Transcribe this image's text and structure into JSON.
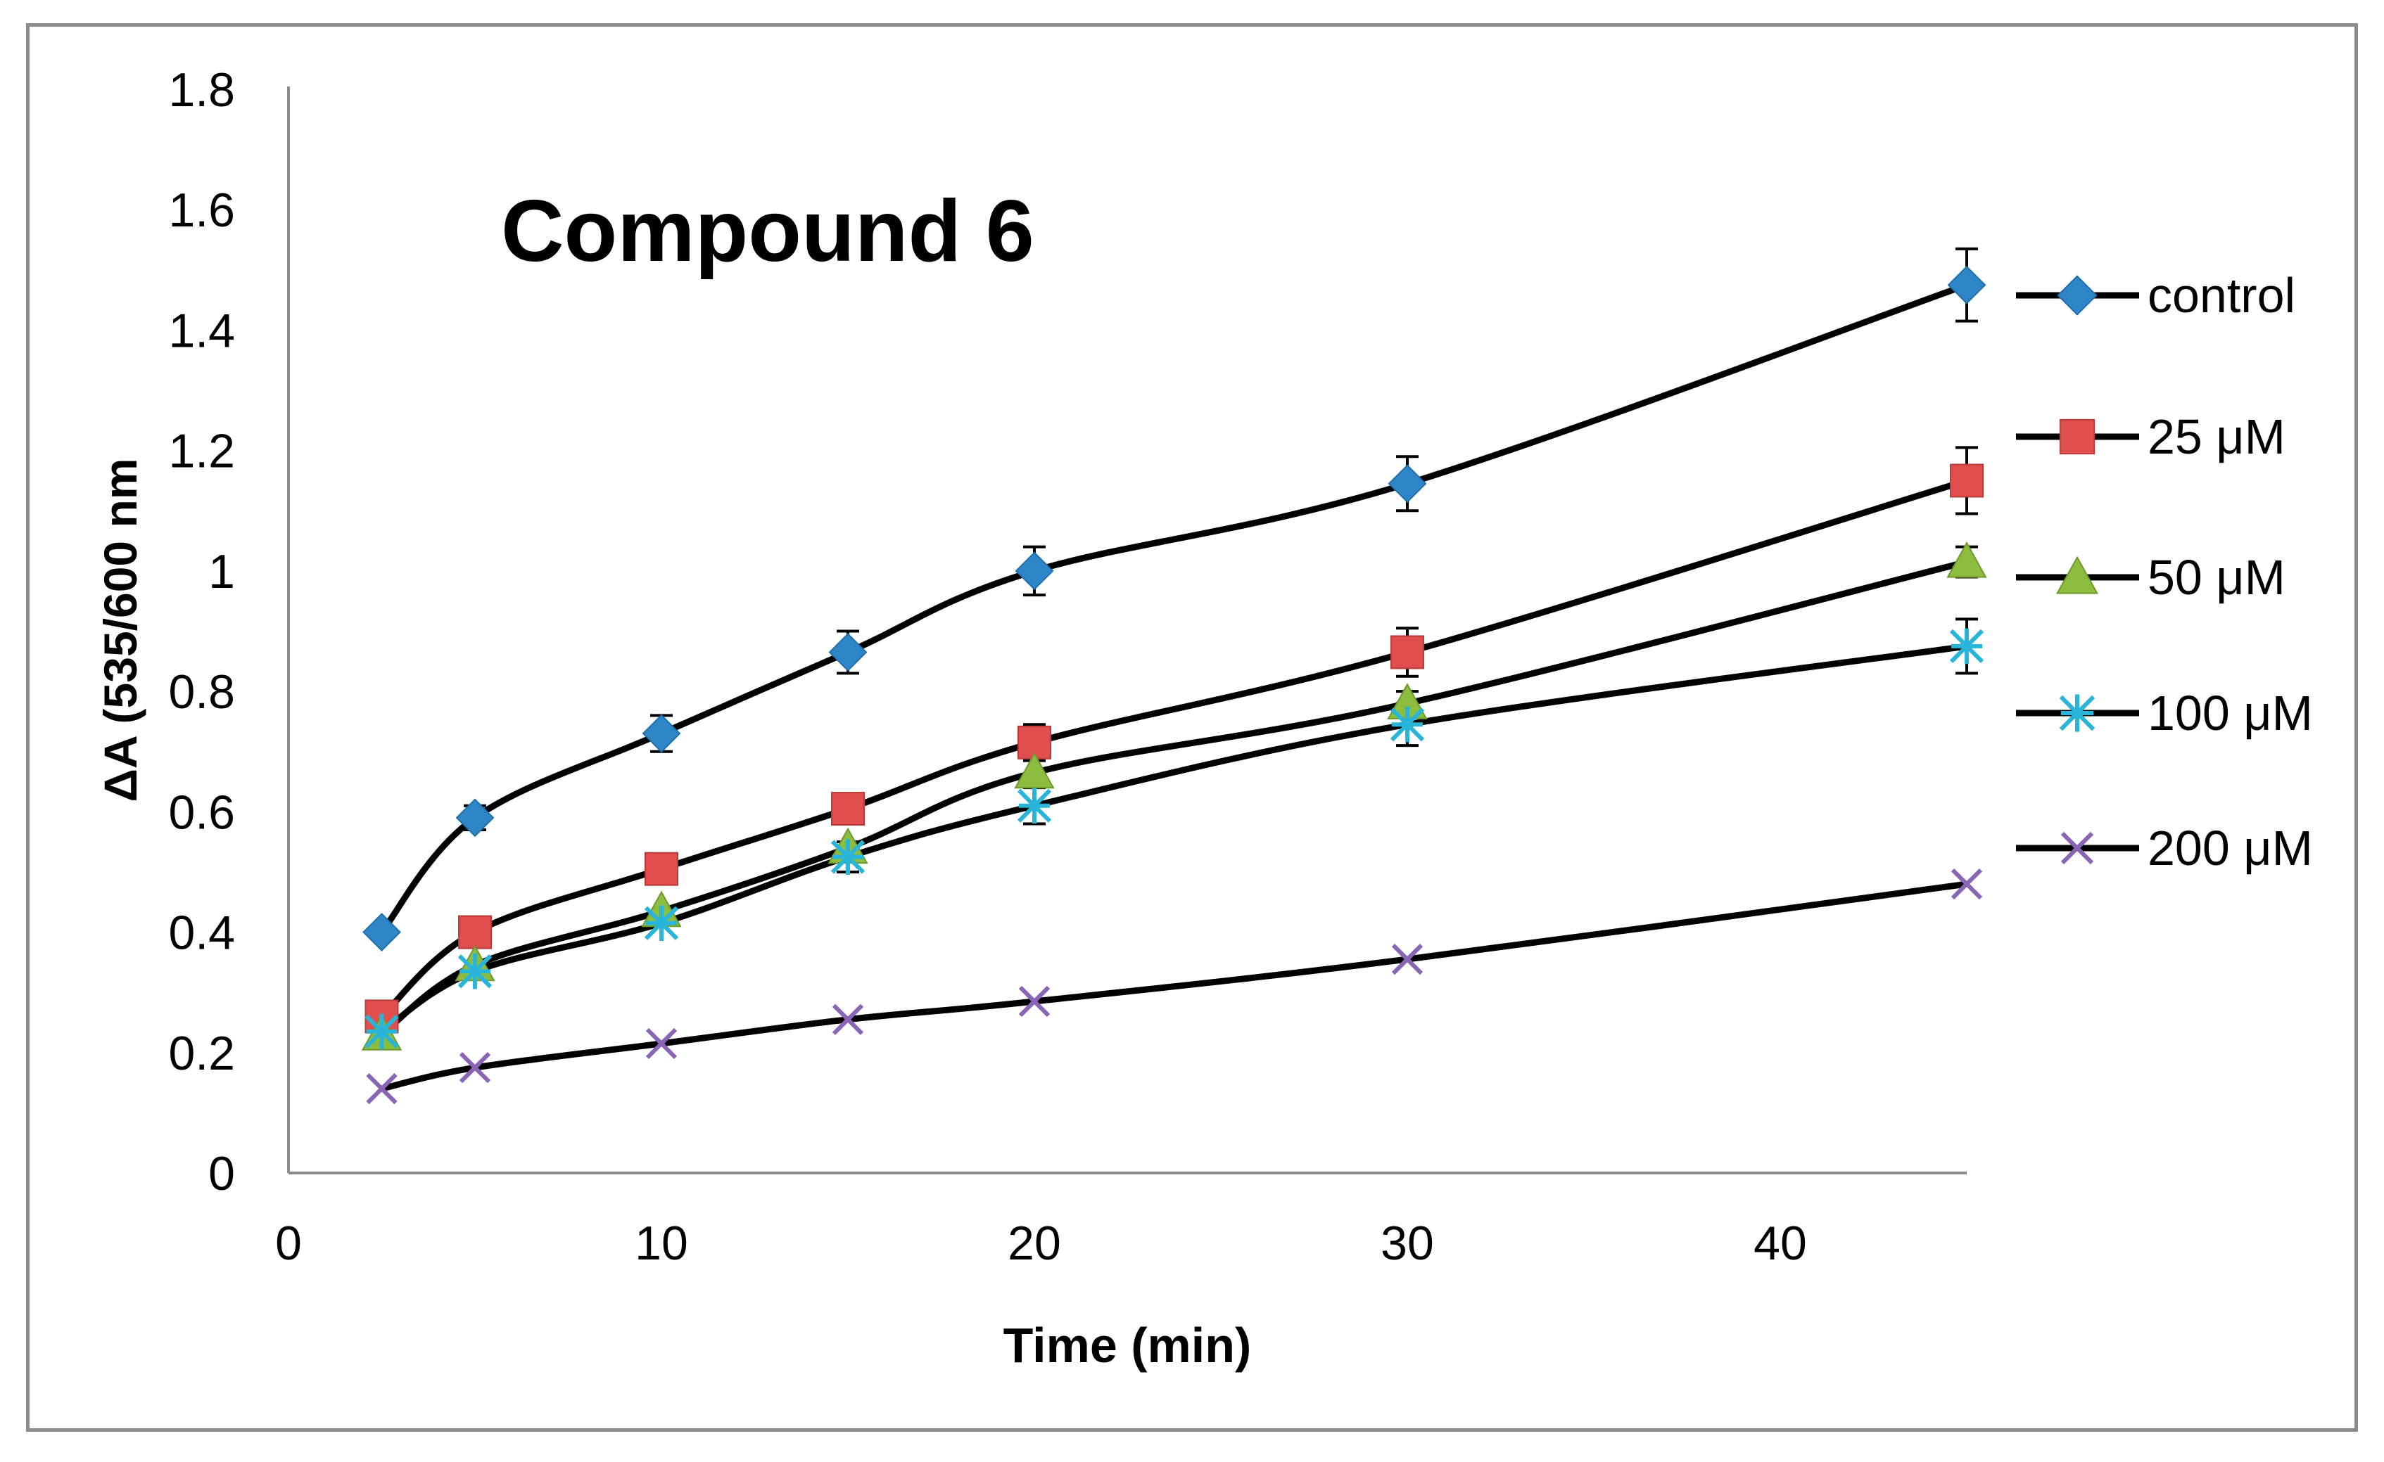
{
  "chart_data": {
    "type": "line",
    "title": "Compound 6",
    "xlabel": "Time (min)",
    "ylabel": "ΔA (535/600 nm",
    "xlim": [
      0,
      45
    ],
    "ylim": [
      0,
      1.8
    ],
    "x_ticks": [
      0,
      10,
      20,
      30,
      40
    ],
    "y_ticks": [
      0,
      0.2,
      0.4,
      0.6,
      0.8,
      1,
      1.2,
      1.4,
      1.6,
      1.8
    ],
    "x_tick_labels": [
      "0",
      "10",
      "20",
      "30",
      "40"
    ],
    "y_tick_labels": [
      "0",
      "0.2",
      "0.4",
      "0.6",
      "0.8",
      "1",
      "1.2",
      "1.4",
      "1.6",
      "1.8"
    ],
    "grid": false,
    "legend_position": "right",
    "line_color": "#000000",
    "x": [
      2.5,
      5,
      10,
      15,
      20,
      30,
      45
    ],
    "series": [
      {
        "name": "control",
        "marker": "diamond",
        "color": "#2e86c8",
        "values": [
          0.4,
          0.59,
          0.73,
          0.865,
          1.0,
          1.145,
          1.475
        ],
        "errors": [
          0.0,
          0.02,
          0.03,
          0.035,
          0.04,
          0.045,
          0.06
        ]
      },
      {
        "name": "25 μM",
        "marker": "square",
        "color": "#e04e4e",
        "values": [
          0.26,
          0.4,
          0.505,
          0.605,
          0.715,
          0.865,
          1.15
        ],
        "errors": [
          0.0,
          0.0,
          0.0,
          0.0,
          0.03,
          0.04,
          0.055
        ]
      },
      {
        "name": "50 μM",
        "marker": "triangle",
        "color": "#8cbd3f",
        "values": [
          0.23,
          0.345,
          0.435,
          0.54,
          0.665,
          0.78,
          1.015
        ],
        "errors": [
          0.0,
          0.0,
          0.0,
          0.0,
          0.0,
          0.02,
          0.025
        ]
      },
      {
        "name": "100 μM",
        "marker": "asterisk",
        "color": "#29b5d9",
        "values": [
          0.235,
          0.335,
          0.415,
          0.525,
          0.61,
          0.745,
          0.875
        ],
        "errors": [
          0.0,
          0.0,
          0.0,
          0.025,
          0.03,
          0.035,
          0.045
        ]
      },
      {
        "name": "200 μM",
        "marker": "x",
        "color": "#8a64b5",
        "values": [
          0.14,
          0.175,
          0.215,
          0.255,
          0.285,
          0.355,
          0.48
        ],
        "errors": [
          0.0,
          0.0,
          0.0,
          0.0,
          0.0,
          0.0,
          0.0
        ]
      }
    ]
  }
}
